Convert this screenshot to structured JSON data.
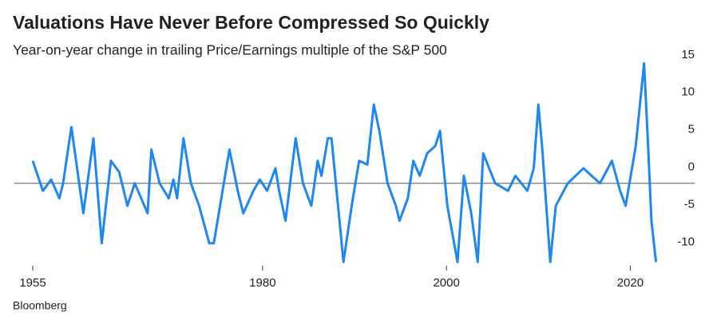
{
  "chart_data": {
    "type": "line",
    "title": "Valuations Have Never Before Compressed So Quickly",
    "subtitle": "Year-on-year change in trailing Price/Earnings multiple of the S&P 500",
    "source": "Bloomberg",
    "x": [
      1955.0,
      1956.1,
      1957.0,
      1957.9,
      1958.3,
      1959.2,
      1960.5,
      1961.6,
      1962.5,
      1963.5,
      1964.4,
      1965.3,
      1966.1,
      1967.5,
      1967.9,
      1968.8,
      1969.8,
      1970.3,
      1970.7,
      1971.4,
      1972.2,
      1973.1,
      1974.2,
      1974.7,
      1976.4,
      1977.3,
      1977.9,
      1979.0,
      1979.7,
      1980.5,
      1981.4,
      1981.8,
      1982.5,
      1983.6,
      1984.4,
      1985.3,
      1986.0,
      1986.4,
      1987.1,
      1987.5,
      1988.8,
      1989.7,
      1990.5,
      1991.4,
      1992.1,
      1992.7,
      1993.6,
      1994.5,
      1994.9,
      1995.8,
      1996.4,
      1997.1,
      1997.9,
      1998.8,
      1999.3,
      2000.1,
      2001.2,
      2001.9,
      2002.7,
      2003.4,
      2004.0,
      2005.3,
      2006.7,
      2007.5,
      2008.8,
      2009.5,
      2010.0,
      2010.4,
      2011.3,
      2011.9,
      2013.2,
      2014.9,
      2016.7,
      2018.0,
      2018.9,
      2019.5,
      2020.6,
      2021.5,
      2021.9,
      2022.3,
      2022.8
    ],
    "series": [
      {
        "name": "P/E change",
        "color": "#1e88f0",
        "values": [
          3,
          -1,
          0.5,
          -2,
          0,
          7.5,
          -4,
          6,
          -8,
          3,
          1.5,
          -3,
          0,
          -4,
          4.5,
          0,
          -2,
          0.5,
          -2,
          6,
          0,
          -3,
          -8,
          -8,
          4.5,
          -1,
          -4,
          -1,
          0.5,
          -1,
          2,
          -1,
          -5,
          6,
          0,
          -3,
          3,
          1,
          6,
          6,
          -10.5,
          -3,
          3,
          2.5,
          10.5,
          7,
          0,
          -3,
          -5,
          -2,
          3,
          1,
          4,
          5,
          7,
          -3,
          -10.5,
          1,
          -4,
          -10.5,
          4,
          0,
          -1,
          1,
          -1,
          2,
          10.5,
          5,
          -10.5,
          -3,
          0,
          2,
          0,
          3,
          -1,
          -3,
          5,
          16,
          6,
          -5,
          -10.5
        ]
      }
    ],
    "xlim": [
      1953,
      2027
    ],
    "xticks": [
      1955,
      1980,
      2000,
      2020
    ],
    "ylim": [
      -11,
      17
    ],
    "yticks": [
      -10,
      -5,
      0,
      5,
      10,
      15
    ]
  }
}
